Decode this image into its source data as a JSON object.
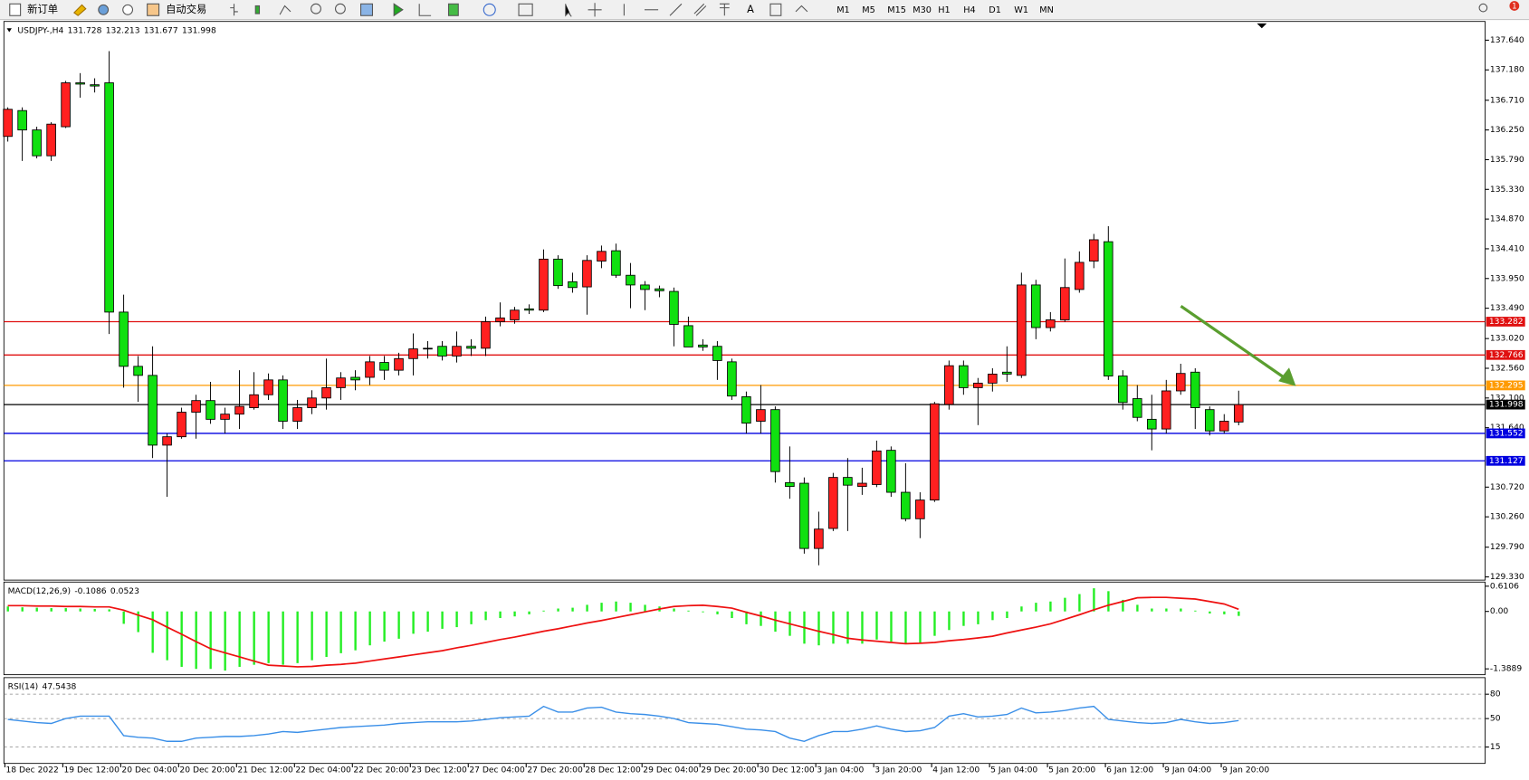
{
  "toolbar": {
    "new_order": "新订单",
    "auto_trading": "自动交易",
    "text_tool": "A",
    "timeframes": [
      "M1",
      "M5",
      "M15",
      "M30",
      "H1",
      "H4",
      "D1",
      "W1",
      "MN"
    ],
    "notification_count": 1
  },
  "chart_data": [
    {
      "type": "candlestick",
      "title": "USDJPY-,H4",
      "up_color": "#ff2020",
      "down_color": "#10e010",
      "open": [
        136.15,
        136.55,
        136.25,
        135.85,
        136.3,
        136.98,
        136.95,
        136.98,
        133.43,
        132.59,
        132.45,
        131.37,
        131.5,
        131.88,
        132.06,
        131.77,
        131.85,
        131.95,
        132.15,
        132.38,
        131.74,
        131.95,
        132.1,
        132.26,
        132.42,
        132.42,
        132.65,
        132.53,
        132.71,
        132.87,
        132.9,
        132.75,
        132.9,
        132.87,
        133.28,
        133.31,
        133.48,
        133.46,
        134.25,
        133.9,
        133.82,
        134.22,
        134.38,
        134.0,
        133.85,
        133.79,
        133.75,
        133.22,
        132.92,
        132.9,
        132.66,
        132.12,
        131.74,
        131.92,
        130.79,
        130.78,
        129.77,
        130.08,
        130.87,
        130.73,
        130.76,
        131.29,
        130.64,
        130.23,
        130.52,
        132.0,
        132.6,
        132.26,
        132.33,
        132.5,
        132.45,
        133.85,
        133.19,
        133.31,
        133.78,
        134.22,
        134.52,
        132.44,
        132.09,
        131.77,
        131.62,
        132.21,
        132.5,
        131.92,
        131.59,
        131.728
      ],
      "high": [
        136.6,
        136.6,
        136.3,
        136.37,
        137.01,
        137.13,
        137.05,
        137.47,
        133.7,
        132.75,
        132.9,
        131.55,
        131.95,
        132.15,
        132.35,
        131.95,
        132.53,
        132.5,
        132.48,
        132.45,
        132.07,
        132.22,
        132.71,
        132.5,
        132.53,
        132.75,
        132.75,
        132.8,
        133.1,
        132.98,
        132.98,
        133.13,
        133.01,
        133.36,
        133.58,
        133.51,
        133.55,
        134.4,
        134.31,
        134.04,
        134.31,
        134.46,
        134.49,
        134.19,
        133.91,
        133.84,
        133.81,
        133.36,
        133.01,
        132.98,
        132.71,
        132.2,
        132.3,
        131.97,
        131.35,
        130.87,
        130.34,
        130.94,
        131.17,
        131.02,
        131.44,
        131.35,
        131.09,
        130.64,
        132.04,
        132.68,
        132.68,
        132.41,
        132.56,
        132.9,
        134.04,
        133.93,
        133.43,
        134.26,
        134.37,
        134.64,
        134.76,
        132.53,
        132.3,
        132.15,
        132.38,
        132.63,
        132.56,
        131.97,
        131.85,
        132.213
      ],
      "low": [
        136.07,
        135.77,
        135.81,
        135.77,
        136.28,
        136.75,
        136.83,
        133.09,
        132.26,
        132.04,
        131.17,
        130.57,
        131.47,
        131.47,
        131.7,
        131.55,
        131.62,
        131.92,
        132.07,
        131.62,
        131.62,
        131.85,
        131.92,
        132.07,
        132.22,
        132.3,
        132.38,
        132.45,
        132.45,
        132.71,
        132.68,
        132.65,
        132.75,
        132.75,
        133.21,
        133.25,
        133.4,
        133.43,
        133.79,
        133.73,
        133.39,
        134.11,
        133.96,
        133.49,
        133.46,
        133.66,
        132.9,
        132.89,
        132.83,
        132.38,
        132.07,
        131.55,
        131.55,
        130.79,
        130.54,
        129.69,
        129.51,
        130.04,
        130.04,
        130.6,
        130.72,
        130.57,
        130.19,
        129.93,
        130.49,
        131.92,
        132.15,
        131.68,
        132.2,
        132.35,
        132.41,
        133.01,
        133.13,
        133.28,
        133.73,
        134.11,
        132.38,
        131.92,
        131.74,
        131.29,
        131.55,
        132.15,
        131.62,
        131.52,
        131.55,
        131.677
      ],
      "close": [
        136.57,
        136.25,
        135.85,
        136.34,
        136.98,
        136.96,
        136.93,
        133.43,
        132.59,
        132.45,
        131.37,
        131.5,
        131.88,
        132.06,
        131.77,
        131.85,
        131.97,
        132.15,
        132.38,
        131.74,
        131.95,
        132.1,
        132.26,
        132.41,
        132.38,
        132.66,
        132.53,
        132.71,
        132.86,
        132.86,
        132.75,
        132.9,
        132.87,
        133.28,
        133.34,
        133.46,
        133.46,
        134.25,
        133.84,
        133.81,
        134.23,
        134.37,
        134.0,
        133.85,
        133.78,
        133.76,
        133.24,
        132.89,
        132.89,
        132.68,
        132.13,
        131.71,
        131.92,
        130.96,
        130.73,
        129.77,
        130.07,
        130.87,
        130.75,
        130.78,
        131.28,
        130.64,
        130.23,
        130.52,
        132.01,
        132.6,
        132.26,
        132.33,
        132.47,
        132.47,
        133.85,
        133.19,
        133.31,
        133.81,
        134.2,
        134.55,
        132.44,
        132.03,
        131.8,
        131.62,
        132.21,
        132.48,
        131.95,
        131.59,
        131.74,
        131.998
      ],
      "ylim": [
        129.28,
        137.93
      ],
      "yticks": [
        {
          "value": 137.64,
          "label": "137.640"
        },
        {
          "value": 137.18,
          "label": "137.180"
        },
        {
          "value": 136.71,
          "label": "136.710"
        },
        {
          "value": 136.25,
          "label": "136.250"
        },
        {
          "value": 135.79,
          "label": "135.790"
        },
        {
          "value": 135.33,
          "label": "135.330"
        },
        {
          "value": 134.87,
          "label": "134.870"
        },
        {
          "value": 134.41,
          "label": "134.410"
        },
        {
          "value": 133.95,
          "label": "133.950"
        },
        {
          "value": 133.49,
          "label": "133.490"
        },
        {
          "value": 133.02,
          "label": "133.020"
        },
        {
          "value": 132.56,
          "label": "132.560"
        },
        {
          "value": 132.1,
          "label": "132.100"
        },
        {
          "value": 131.64,
          "label": "131.640"
        },
        {
          "value": 130.72,
          "label": "130.720"
        },
        {
          "value": 130.26,
          "label": "130.260"
        },
        {
          "value": 129.79,
          "label": "129.790"
        },
        {
          "value": 129.33,
          "label": "129.330"
        }
      ],
      "levels": [
        {
          "value": 133.282,
          "color": "#e01010"
        },
        {
          "value": 132.766,
          "color": "#e01010"
        },
        {
          "value": 132.295,
          "color": "#ff9a00"
        },
        {
          "value": 131.998,
          "color": "#000000"
        },
        {
          "value": 131.552,
          "color": "#0000e0"
        },
        {
          "value": 131.127,
          "color": "#0000e0"
        }
      ]
    },
    {
      "type": "macd",
      "title": "MACD(12,26,9)",
      "ylim": [
        -1.53,
        0.71
      ],
      "yticks": [
        0.6106,
        {
          "value": 0,
          "label": "0.00"
        },
        -1.3889
      ],
      "series": [
        {
          "color": "#22ee22",
          "values": [
            0.12,
            0.1,
            0.09,
            0.08,
            0.08,
            0.07,
            0.06,
            0.05,
            -0.3,
            -0.5,
            -1.0,
            -1.18,
            -1.34,
            -1.39,
            -1.39,
            -1.43,
            -1.34,
            -1.29,
            -1.25,
            -1.29,
            -1.25,
            -1.18,
            -1.1,
            -1.01,
            -0.94,
            -0.82,
            -0.73,
            -0.66,
            -0.54,
            -0.49,
            -0.42,
            -0.38,
            -0.31,
            -0.21,
            -0.16,
            -0.12,
            -0.07,
            0.02,
            0.07,
            0.09,
            0.16,
            0.21,
            0.24,
            0.21,
            0.16,
            0.12,
            0.07,
            0.02,
            -0.02,
            -0.07,
            -0.16,
            -0.31,
            -0.35,
            -0.49,
            -0.59,
            -0.78,
            -0.82,
            -0.78,
            -0.78,
            -0.78,
            -0.68,
            -0.73,
            -0.78,
            -0.78,
            -0.59,
            -0.45,
            -0.35,
            -0.31,
            -0.21,
            -0.16,
            0.12,
            0.21,
            0.24,
            0.33,
            0.42,
            0.56,
            0.49,
            0.28,
            0.16,
            0.07,
            0.07,
            0.07,
            0.02,
            -0.05,
            -0.07,
            -0.1086
          ]
        },
        {
          "color": "#ee1111",
          "values": [
            0.14,
            0.14,
            0.13,
            0.13,
            0.12,
            0.12,
            0.11,
            0.11,
            0.03,
            -0.09,
            -0.2,
            -0.38,
            -0.55,
            -0.73,
            -0.9,
            -1.0,
            -1.1,
            -1.2,
            -1.3,
            -1.32,
            -1.34,
            -1.33,
            -1.3,
            -1.28,
            -1.25,
            -1.2,
            -1.15,
            -1.1,
            -1.05,
            -1.0,
            -0.95,
            -0.88,
            -0.82,
            -0.75,
            -0.68,
            -0.62,
            -0.55,
            -0.48,
            -0.42,
            -0.35,
            -0.28,
            -0.22,
            -0.15,
            -0.08,
            -0.01,
            0.06,
            0.12,
            0.14,
            0.15,
            0.12,
            0.08,
            -0.02,
            -0.11,
            -0.21,
            -0.3,
            -0.39,
            -0.48,
            -0.56,
            -0.65,
            -0.69,
            -0.72,
            -0.75,
            -0.78,
            -0.77,
            -0.75,
            -0.71,
            -0.68,
            -0.64,
            -0.6,
            -0.52,
            -0.45,
            -0.38,
            -0.3,
            -0.19,
            -0.08,
            0.04,
            0.15,
            0.24,
            0.33,
            0.34,
            0.34,
            0.32,
            0.3,
            0.24,
            0.18,
            0.0523
          ]
        }
      ]
    },
    {
      "type": "line",
      "title": "RSI(14)",
      "ylim": [
        -5.2,
        100.4
      ],
      "yticks": [
        80,
        50,
        15
      ],
      "grid": true,
      "categories": [
        "18 Dec 2022",
        null,
        null,
        null,
        "19 Dec 12:00",
        null,
        null,
        null,
        "20 Dec 04:00",
        null,
        null,
        null,
        "20 Dec 20:00",
        null,
        null,
        null,
        "21 Dec 12:00",
        null,
        null,
        null,
        "22 Dec 04:00",
        null,
        null,
        null,
        "22 Dec 20:00",
        null,
        null,
        null,
        "23 Dec 12:00",
        null,
        null,
        null,
        "27 Dec 04:00",
        null,
        null,
        null,
        "27 Dec 20:00",
        null,
        null,
        null,
        "28 Dec 12:00",
        null,
        null,
        null,
        "29 Dec 04:00",
        null,
        null,
        null,
        "29 Dec 20:00",
        null,
        null,
        null,
        "30 Dec 12:00",
        null,
        null,
        null,
        "3 Jan 04:00",
        null,
        null,
        null,
        "3 Jan 20:00",
        null,
        null,
        null,
        "4 Jan 12:00",
        null,
        null,
        null,
        "5 Jan 04:00",
        null,
        null,
        null,
        "5 Jan 20:00",
        null,
        null,
        null,
        "6 Jan 12:00",
        null,
        null,
        null,
        "9 Jan 04:00",
        null,
        null,
        null,
        "9 Jan 20:00",
        null
      ],
      "series": [
        {
          "color": "#3a8fe8",
          "values": [
            49,
            47,
            45,
            44,
            50,
            53,
            53,
            53,
            29,
            27,
            26,
            22,
            22,
            26,
            27,
            28,
            28,
            29,
            31,
            34,
            33,
            35,
            37,
            39,
            40,
            41,
            42,
            44,
            45,
            46,
            46,
            46,
            47,
            49,
            51,
            52,
            53,
            65,
            58,
            58,
            63,
            64,
            58,
            56,
            55,
            53,
            50,
            45,
            44,
            43,
            40,
            37,
            36,
            34,
            26,
            22,
            29,
            34,
            34,
            37,
            41,
            37,
            34,
            35,
            39,
            53,
            56,
            52,
            53,
            55,
            63,
            57,
            58,
            60,
            63,
            65,
            49,
            47,
            45,
            44,
            45,
            49,
            46,
            44,
            45,
            47.5438
          ]
        }
      ]
    }
  ]
}
